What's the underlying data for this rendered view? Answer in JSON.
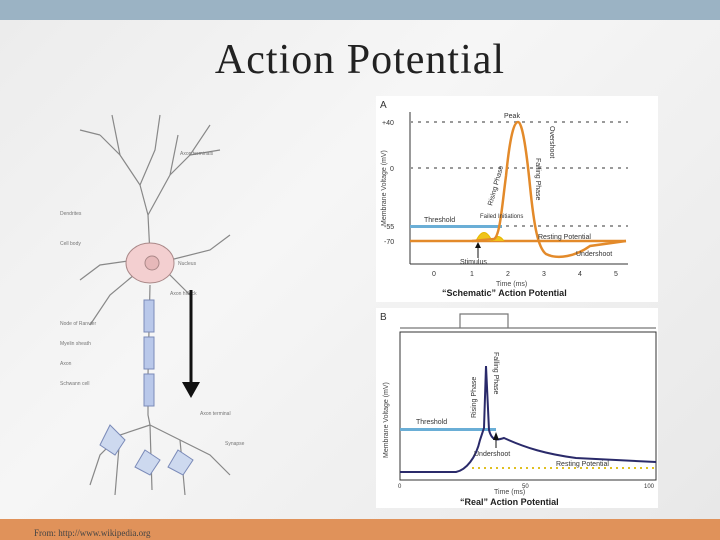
{
  "slide": {
    "title": "Action Potential",
    "credit": "From: http://www.wikipedia.org"
  },
  "neuron": {
    "labels": [
      "Axon terminals",
      "Dendrites",
      "Nucleus",
      "Axon hillock",
      "Node of Ranvier",
      "Myelin sheath",
      "Axon",
      "Cell body",
      "Schwann cell",
      "Axon terminal",
      "Synapse"
    ]
  },
  "panel_a": {
    "letter": "A",
    "ylabel": "Membrane Voltage (mV)",
    "xlabel": "Time (ms)",
    "y_ticks": [
      "+40",
      "0",
      "-55",
      "-70"
    ],
    "x_ticks": [
      "0",
      "1",
      "2",
      "3",
      "4",
      "5"
    ],
    "labels": {
      "peak": "Peak",
      "rising": "Rising Phase",
      "falling": "Falling Phase",
      "overshoot": "Overshoot",
      "threshold": "Threshold",
      "failed": "Failed Initiations",
      "resting": "Resting Potential",
      "stimulus": "Stimulus",
      "undershoot": "Undershoot"
    },
    "caption": "“Schematic” Action Potential",
    "colors": {
      "trace": "#e38a2a",
      "dotted": "#9a9a9a",
      "threshold": "#6aaed6",
      "failed": "#f0c419"
    }
  },
  "panel_b": {
    "letter": "B",
    "ylabel": "Membrane Voltage (mV)",
    "xlabel": "Time (ms)",
    "x_ticks": [
      "0",
      "50",
      "100"
    ],
    "labels": {
      "rising": "Rising Phase",
      "falling": "Falling Phase",
      "threshold": "Threshold",
      "undershoot": "Undershoot",
      "resting": "Resting Potential"
    },
    "caption": "“Real” Action Potential",
    "colors": {
      "trace": "#2a2a6a",
      "threshold": "#6aaed6",
      "resting": "#e0c020"
    }
  }
}
